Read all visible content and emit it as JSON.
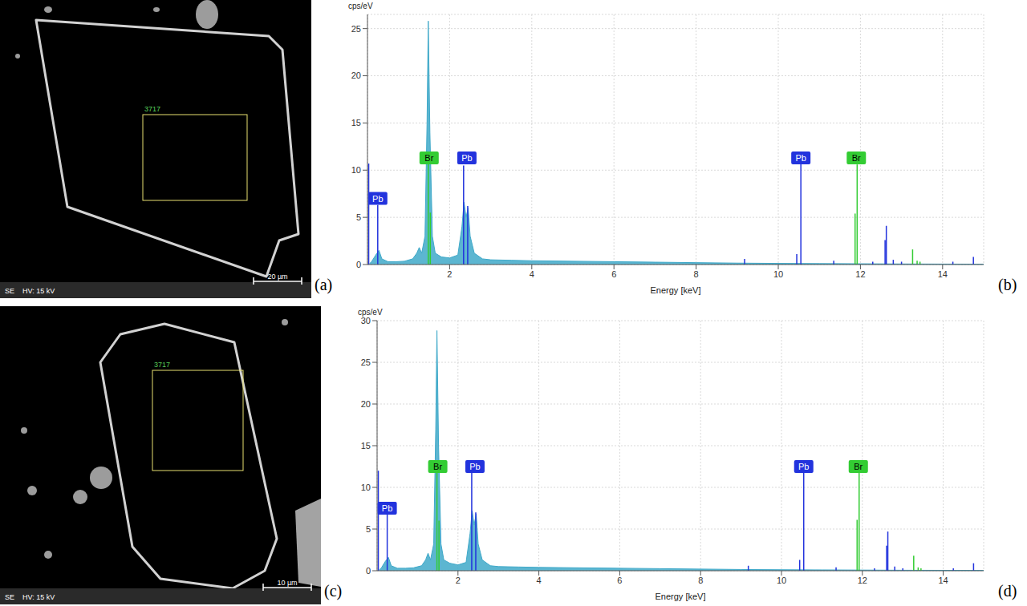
{
  "chart_data": [
    {
      "type": "area",
      "panel": "(b)",
      "y_label": "cps/eV",
      "x_label": "Energy [keV]",
      "x": [
        0.05,
        0.1,
        0.2,
        0.28,
        0.35,
        0.5,
        0.7,
        0.9,
        1.1,
        1.2,
        1.26,
        1.32,
        1.4,
        1.45,
        1.48,
        1.52,
        1.58,
        1.65,
        1.8,
        2.0,
        2.2,
        2.3,
        2.35,
        2.4,
        2.45,
        2.5,
        2.6,
        2.8,
        3.0,
        3.5,
        4,
        5,
        6,
        7,
        8,
        9,
        10,
        11,
        12,
        13,
        14,
        15
      ],
      "values": [
        0.1,
        0.3,
        1.0,
        1.5,
        0.6,
        0.3,
        0.3,
        0.35,
        0.6,
        1.2,
        1.8,
        1.2,
        3,
        15,
        25.8,
        14,
        3,
        1.2,
        0.8,
        0.7,
        1.0,
        4,
        6.6,
        5,
        6,
        3,
        1.2,
        0.6,
        0.5,
        0.45,
        0.4,
        0.35,
        0.3,
        0.25,
        0.2,
        0.15,
        0.12,
        0.1,
        0.08,
        0.06,
        0.05,
        0.04
      ],
      "color": "#3fa9c9",
      "xlim": [
        0,
        15
      ],
      "ylim": [
        0,
        26.5
      ],
      "xticks": [
        2,
        4,
        6,
        8,
        10,
        12,
        14
      ],
      "yticks": [
        0,
        5,
        10,
        15,
        20,
        25
      ],
      "grid": true,
      "series": [
        {
          "name": "Pb",
          "type": "stem",
          "color": "#2233dd",
          "x": [
            0.03,
            0.25,
            2.34,
            2.44,
            9.18,
            10.45,
            10.55,
            11.35,
            12.3,
            12.6,
            12.63,
            12.8,
            13.0,
            14.25,
            14.75
          ],
          "values": [
            10.7,
            6.3,
            10.5,
            6.2,
            0.6,
            1.1,
            10.7,
            0.4,
            0.3,
            2.6,
            4.1,
            0.5,
            0.3,
            0.3,
            0.8
          ]
        },
        {
          "name": "Br",
          "type": "stem",
          "color": "#33cc33",
          "x": [
            1.48,
            1.53,
            11.87,
            11.92,
            13.27,
            13.38,
            13.45
          ],
          "values": [
            11,
            5.5,
            5.4,
            10.6,
            1.6,
            0.4,
            0.3
          ]
        }
      ],
      "annotations": [
        {
          "text": "Pb",
          "x": 0.25,
          "y": 7,
          "color": "#2233dd"
        },
        {
          "text": "Br",
          "x": 1.5,
          "y": 11.3,
          "color": "#33cc33"
        },
        {
          "text": "Pb",
          "x": 2.42,
          "y": 11.3,
          "color": "#2233dd"
        },
        {
          "text": "Pb",
          "x": 10.55,
          "y": 11.3,
          "color": "#2233dd"
        },
        {
          "text": "Br",
          "x": 11.9,
          "y": 11.3,
          "color": "#33cc33"
        }
      ]
    },
    {
      "type": "area",
      "panel": "(d)",
      "y_label": "cps/eV",
      "x_label": "Energy [keV]",
      "x": [
        0.05,
        0.1,
        0.2,
        0.28,
        0.35,
        0.5,
        0.7,
        0.9,
        1.1,
        1.2,
        1.26,
        1.32,
        1.4,
        1.45,
        1.48,
        1.52,
        1.58,
        1.65,
        1.8,
        2.0,
        2.2,
        2.3,
        2.35,
        2.4,
        2.45,
        2.5,
        2.6,
        2.8,
        3.0,
        3.5,
        4,
        5,
        6,
        7,
        8,
        9,
        10,
        11,
        12,
        13,
        14,
        15
      ],
      "values": [
        0.1,
        0.3,
        1.1,
        1.6,
        0.6,
        0.3,
        0.3,
        0.35,
        0.6,
        1.3,
        2.1,
        1.3,
        3.2,
        17,
        28.8,
        15,
        3.2,
        1.3,
        0.9,
        0.7,
        1.0,
        4.5,
        7.2,
        5.5,
        6.8,
        3.2,
        1.3,
        0.6,
        0.5,
        0.45,
        0.4,
        0.35,
        0.3,
        0.25,
        0.2,
        0.15,
        0.12,
        0.1,
        0.08,
        0.06,
        0.05,
        0.04
      ],
      "color": "#3fa9c9",
      "xlim": [
        0,
        15
      ],
      "ylim": [
        0,
        30
      ],
      "xticks": [
        2,
        4,
        6,
        8,
        10,
        12,
        14
      ],
      "yticks": [
        0,
        5,
        10,
        15,
        20,
        25,
        30
      ],
      "grid": true,
      "series": [
        {
          "name": "Pb",
          "type": "stem",
          "color": "#2233dd",
          "x": [
            0.03,
            0.25,
            2.34,
            2.44,
            9.18,
            10.45,
            10.55,
            11.35,
            12.3,
            12.6,
            12.63,
            12.8,
            13.0,
            14.25,
            14.75
          ],
          "values": [
            12,
            7.2,
            12,
            7,
            0.6,
            1.3,
            12,
            0.4,
            0.3,
            3,
            4.7,
            0.5,
            0.3,
            0.3,
            0.9
          ]
        },
        {
          "name": "Br",
          "type": "stem",
          "color": "#33cc33",
          "x": [
            1.48,
            1.53,
            11.87,
            11.92,
            13.27,
            13.38,
            13.45
          ],
          "values": [
            12.2,
            6,
            6.1,
            12,
            1.8,
            0.4,
            0.3
          ]
        }
      ],
      "annotations": [
        {
          "text": "Pb",
          "x": 0.25,
          "y": 7.5,
          "color": "#2233dd"
        },
        {
          "text": "Br",
          "x": 1.5,
          "y": 12.5,
          "color": "#33cc33"
        },
        {
          "text": "Pb",
          "x": 2.42,
          "y": 12.5,
          "color": "#2233dd"
        },
        {
          "text": "Pb",
          "x": 10.55,
          "y": 12.5,
          "color": "#2233dd"
        },
        {
          "text": "Br",
          "x": 11.9,
          "y": 12.5,
          "color": "#33cc33"
        }
      ]
    }
  ],
  "micrographs": [
    {
      "panel": "(a)",
      "detector": "SE",
      "voltage": "HV: 15 kV",
      "scale_bar": "20 µm",
      "region_label": "3717"
    },
    {
      "panel": "(c)",
      "detector": "SE",
      "voltage": "HV: 15 kV",
      "scale_bar": "10 µm",
      "region_label": "3717"
    }
  ]
}
